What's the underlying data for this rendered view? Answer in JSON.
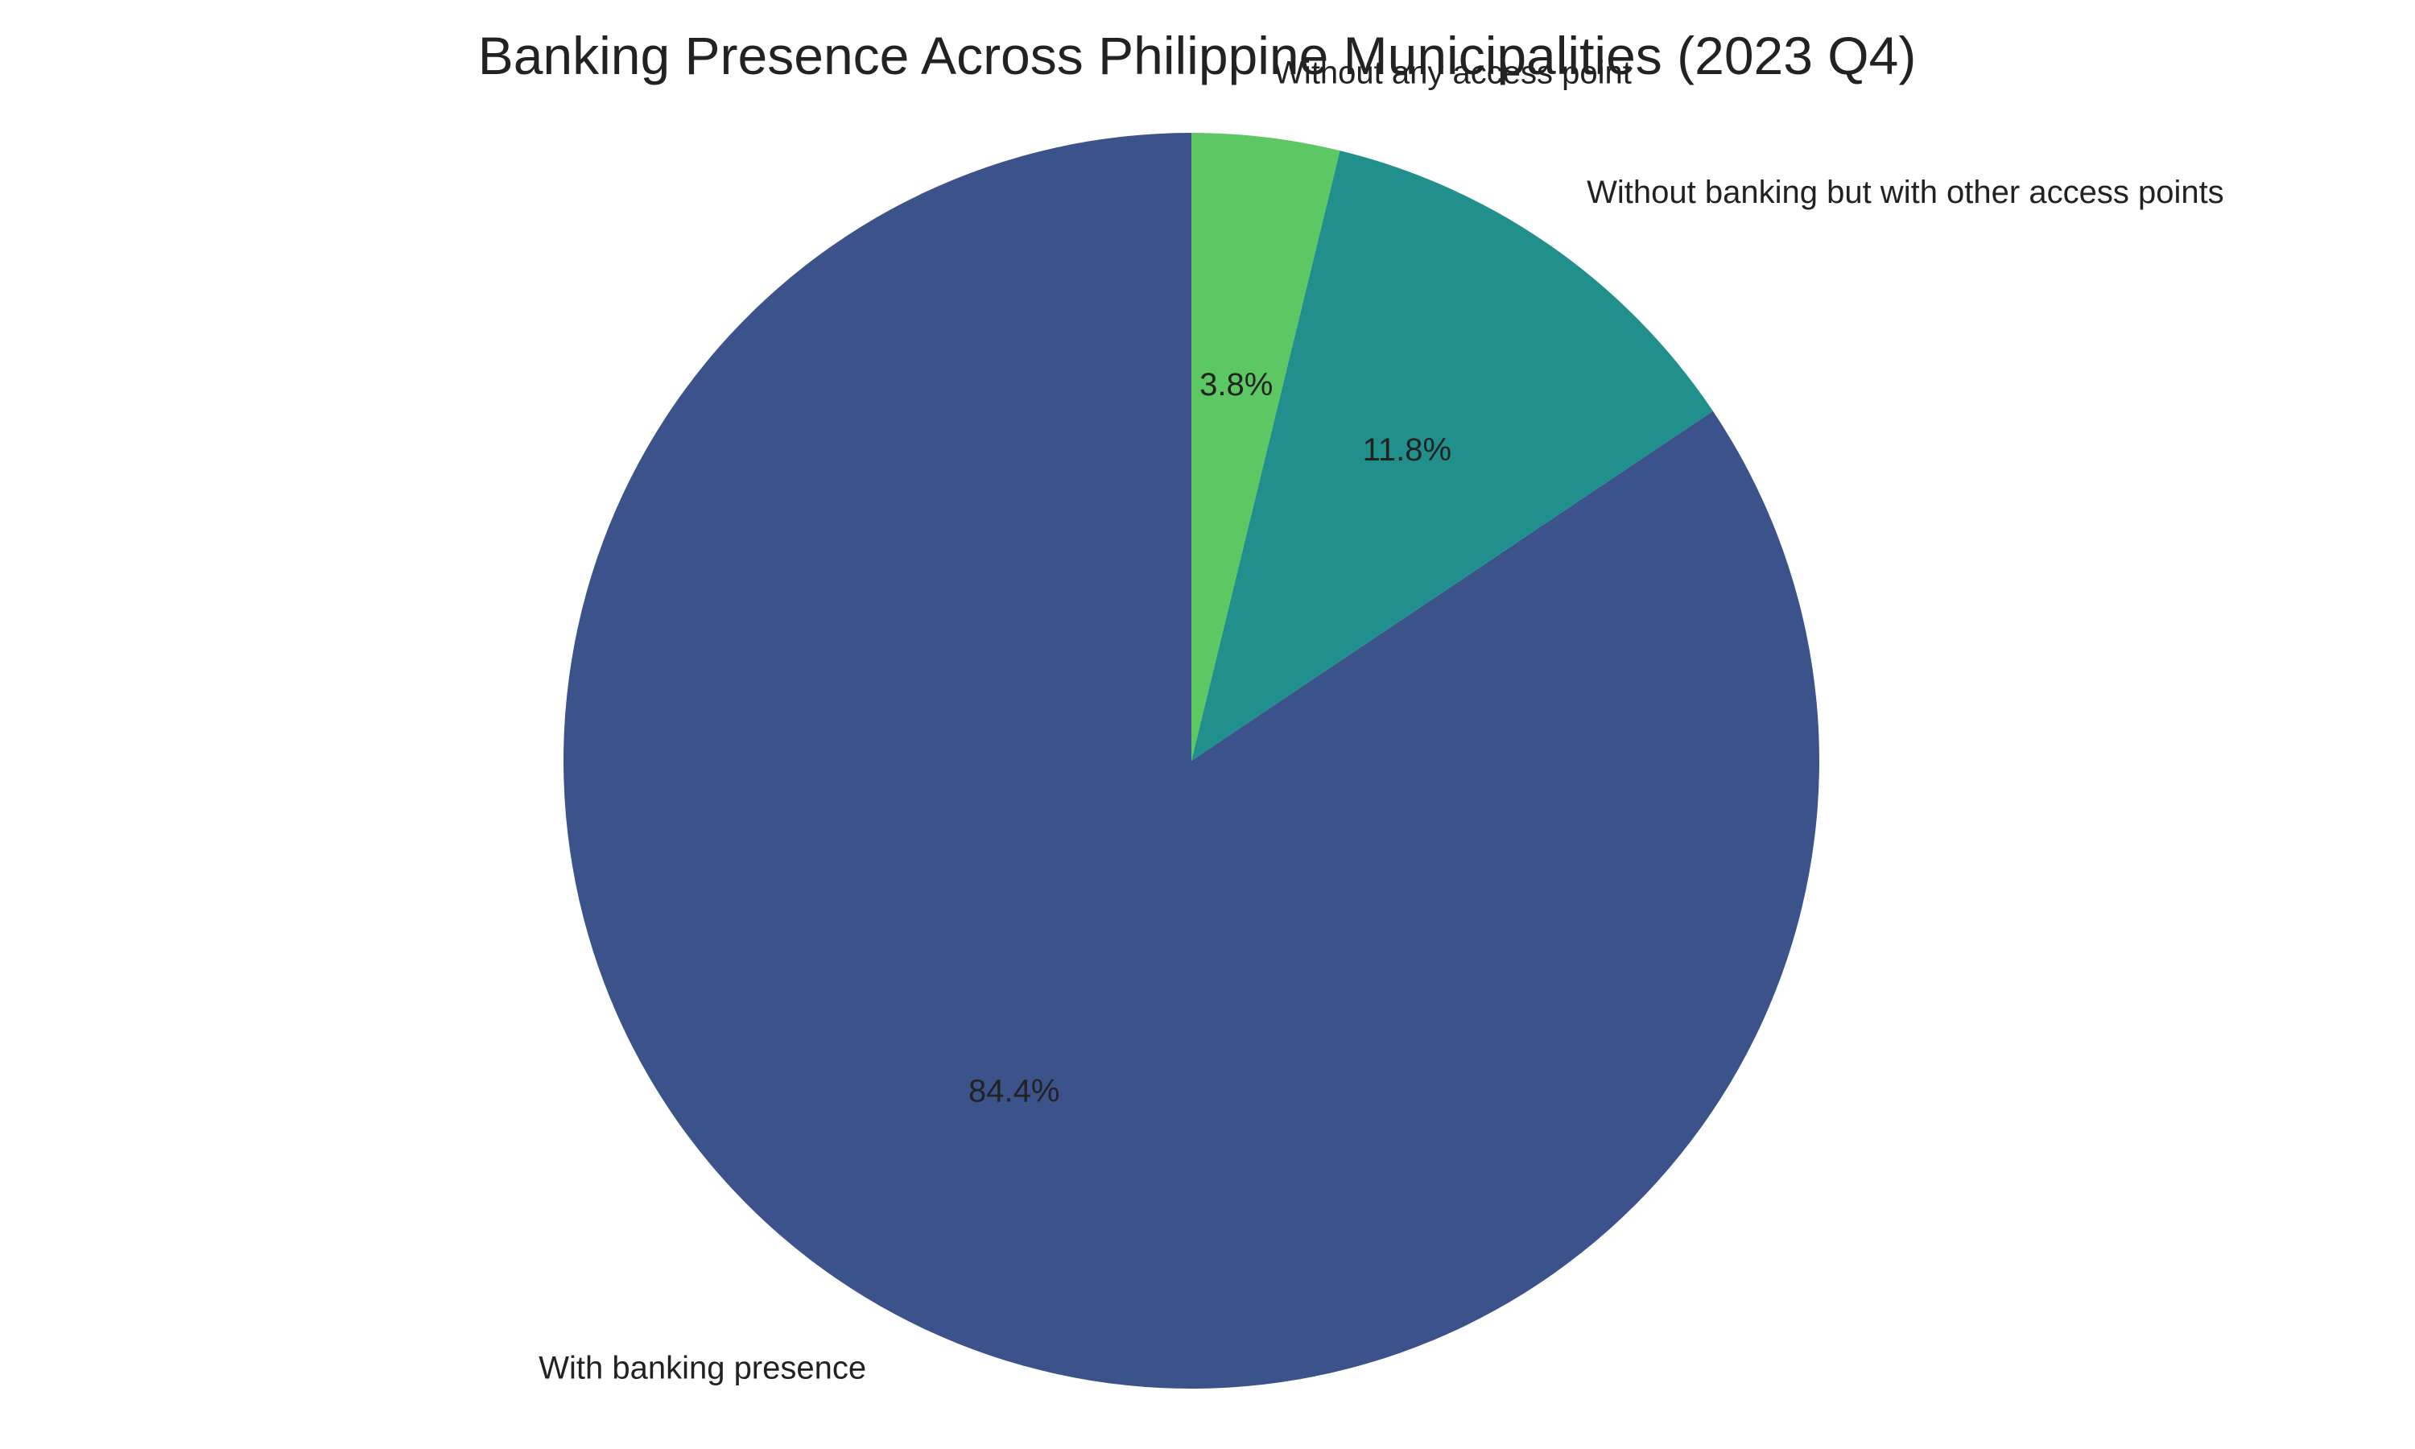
{
  "chart_data": {
    "type": "pie",
    "title": "Banking Presence Across Philippine Municipalities (2023 Q4)",
    "start_angle_deg": 90,
    "direction": "counterclockwise",
    "slices": [
      {
        "label": "With banking presence",
        "value": 84.4,
        "pct_label": "84.4%",
        "color": "#3b528b"
      },
      {
        "label": "Without banking but with other access points",
        "value": 11.8,
        "pct_label": "11.8%",
        "color": "#21908d"
      },
      {
        "label": "Without any access point",
        "value": 3.8,
        "pct_label": "3.8%",
        "color": "#5dc863"
      }
    ],
    "legend": "none"
  }
}
